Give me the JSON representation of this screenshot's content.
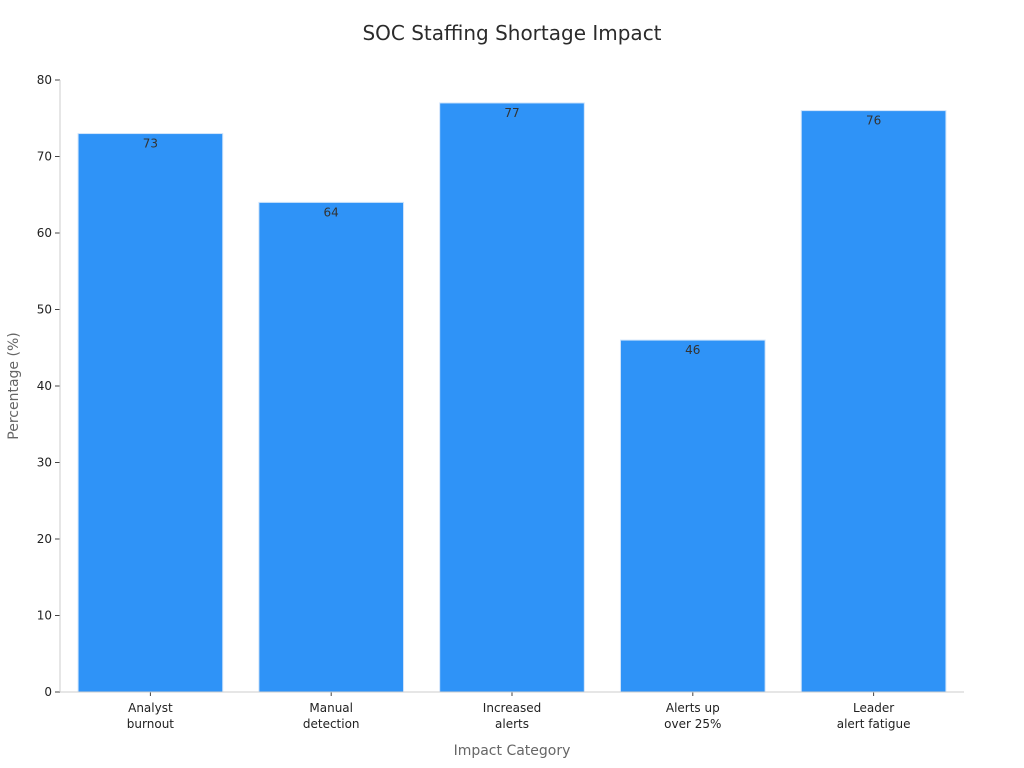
{
  "chart_data": {
    "type": "bar",
    "title": "SOC Staffing Shortage Impact",
    "xlabel": "Impact Category",
    "ylabel": "Percentage (%)",
    "categories": [
      [
        "Analyst",
        "burnout"
      ],
      [
        "Manual",
        "detection"
      ],
      [
        "Increased",
        "alerts"
      ],
      [
        "Alerts up",
        "over 25%"
      ],
      [
        "Leader",
        "alert fatigue"
      ]
    ],
    "values": [
      73,
      64,
      77,
      46,
      76
    ],
    "ylim": [
      0,
      80
    ],
    "yticks": [
      0,
      10,
      20,
      30,
      40,
      50,
      60,
      70,
      80
    ],
    "grid": false,
    "legend": "none",
    "colors": {
      "bar": "#2f93f7",
      "bar_edge": "#cfe4fb"
    }
  }
}
